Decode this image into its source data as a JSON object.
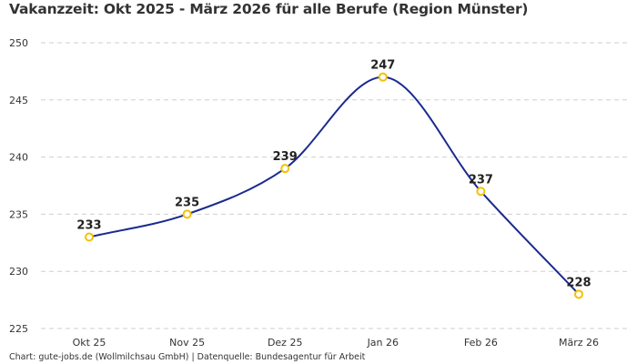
{
  "chart_data": {
    "type": "line",
    "title": "Vakanzzeit: Okt 2025 - März 2026 für alle Berufe (Region Münster)",
    "categories": [
      "Okt 25",
      "Nov 25",
      "Dez 25",
      "Jan 26",
      "Feb 26",
      "März 26"
    ],
    "values": [
      233,
      235,
      239,
      247,
      237,
      228
    ],
    "xlabel": "",
    "ylabel": "",
    "ylim": [
      225,
      250
    ],
    "yticks": [
      225,
      230,
      235,
      240,
      245,
      250
    ],
    "grid": true,
    "smooth": true,
    "line_color": "#1a2a8f",
    "marker_color": "#f5c000"
  },
  "footer": "Chart: gute-jobs.de (Wollmilchsau GmbH) | Datenquelle: Bundesagentur für Arbeit"
}
